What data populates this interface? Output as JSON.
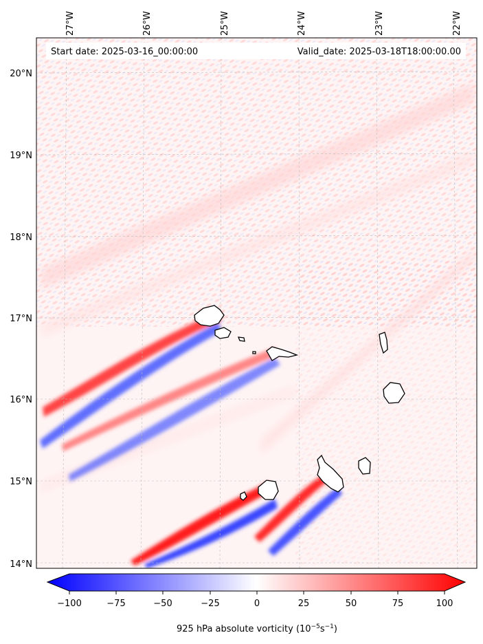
{
  "header": {
    "start_label": "Start date: 2025-03-16_00:00:00",
    "valid_label": "Valid_date: 2025-03-18T18:00:00.00"
  },
  "longitude_labels": [
    "27°W",
    "26°W",
    "25°W",
    "24°W",
    "23°W",
    "22°W"
  ],
  "latitude_labels": [
    "20°N",
    "19°N",
    "18°N",
    "17°N",
    "16°N",
    "15°N",
    "14°N"
  ],
  "colorbar": {
    "ticks": [
      "−100",
      "−75",
      "−50",
      "−25",
      "0",
      "25",
      "50",
      "75",
      "100"
    ],
    "label_main": "925 hPa absolute vorticity (10",
    "label_exp1": "−5",
    "label_mid": "s",
    "label_exp2": "−1",
    "label_end": ")",
    "min_color": "#0000ff",
    "mid_color": "#ffffff",
    "max_color": "#ff0000"
  },
  "chart_data": {
    "type": "heatmap",
    "variable": "925 hPa absolute vorticity",
    "units": "10^-5 s^-1",
    "lon_range": [
      -27.3,
      -21.95
    ],
    "lat_range": [
      13.95,
      20.45
    ],
    "color_range": [
      -100,
      100
    ],
    "colormap": "bwr",
    "grid": true,
    "islands": [
      {
        "lon": -24.9,
        "lat": 16.95,
        "note": "Santo Antão"
      },
      {
        "lon": -24.97,
        "lat": 16.82,
        "note": "São Vicente"
      },
      {
        "lon": -24.25,
        "lat": 16.6,
        "note": "São Nicolau"
      },
      {
        "lon": -22.93,
        "lat": 16.7,
        "note": "Sal"
      },
      {
        "lon": -22.87,
        "lat": 16.1,
        "note": "Boa Vista"
      },
      {
        "lon": -23.12,
        "lat": 15.17,
        "note": "Maio"
      },
      {
        "lon": -23.65,
        "lat": 15.05,
        "note": "Santiago"
      },
      {
        "lon": -24.4,
        "lat": 14.92,
        "note": "Fogo"
      },
      {
        "lon": -24.7,
        "lat": 14.85,
        "note": "Brava"
      }
    ],
    "features": [
      {
        "desc": "red/blue wake dipole",
        "from_lon": -27.25,
        "from_lat": 15.9,
        "to_lon": -24.95,
        "to_lat": 16.95
      },
      {
        "desc": "red/blue wake dipole",
        "from_lon": -27.0,
        "from_lat": 15.4,
        "to_lon": -24.3,
        "to_lat": 16.55
      },
      {
        "desc": "red/blue wake dipole",
        "from_lon": -26.0,
        "from_lat": 14.05,
        "to_lon": -24.45,
        "to_lat": 14.95
      },
      {
        "desc": "red/blue wake dipole",
        "from_lon": -24.6,
        "from_lat": 14.3,
        "to_lon": -23.6,
        "to_lat": 15.1
      }
    ]
  }
}
